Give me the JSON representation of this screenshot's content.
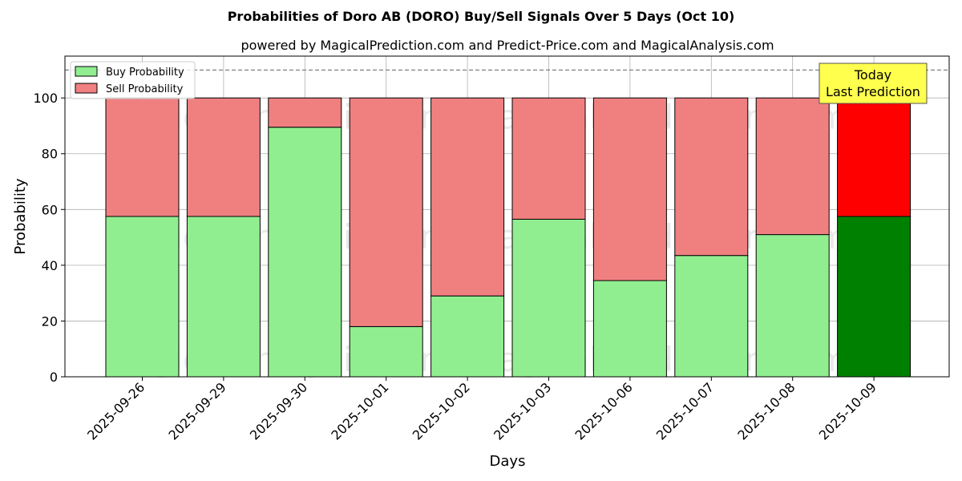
{
  "chart_data": {
    "type": "bar",
    "stacked": true,
    "title": "Probabilities of Doro AB (DORO) Buy/Sell Signals Over 5 Days (Oct 10)",
    "subtitle": "powered by MagicalPrediction.com and Predict-Price.com and MagicalAnalysis.com",
    "xlabel": "Days",
    "ylabel": "Probability",
    "ylim": [
      0,
      115
    ],
    "yticks": [
      0,
      20,
      40,
      60,
      80,
      100
    ],
    "grid": true,
    "legend_position": "top-left",
    "categories": [
      "2025-09-26",
      "2025-09-29",
      "2025-09-30",
      "2025-10-01",
      "2025-10-02",
      "2025-10-03",
      "2025-10-06",
      "2025-10-07",
      "2025-10-08",
      "2025-10-09"
    ],
    "series": [
      {
        "name": "Buy Probability",
        "color": "#90ee90",
        "values": [
          57.5,
          57.5,
          89.5,
          18,
          29,
          56.5,
          34.5,
          43.5,
          51,
          57.5
        ]
      },
      {
        "name": "Sell Probability",
        "color": "#f08080",
        "values": [
          42.5,
          42.5,
          10.5,
          82,
          71,
          43.5,
          65.5,
          56.5,
          49,
          42.5
        ]
      }
    ],
    "highlight": {
      "index": 9,
      "buy_color": "#008000",
      "sell_color": "#ff0000"
    },
    "reference_line": {
      "y": 110,
      "style": "dashed",
      "color": "#808080"
    },
    "annotation": {
      "lines": [
        "Today",
        "Last Prediction"
      ],
      "background": "#ffff4d"
    },
    "watermarks": [
      "MagicalAnalysis.com",
      "MagicalPrediction.com"
    ]
  }
}
